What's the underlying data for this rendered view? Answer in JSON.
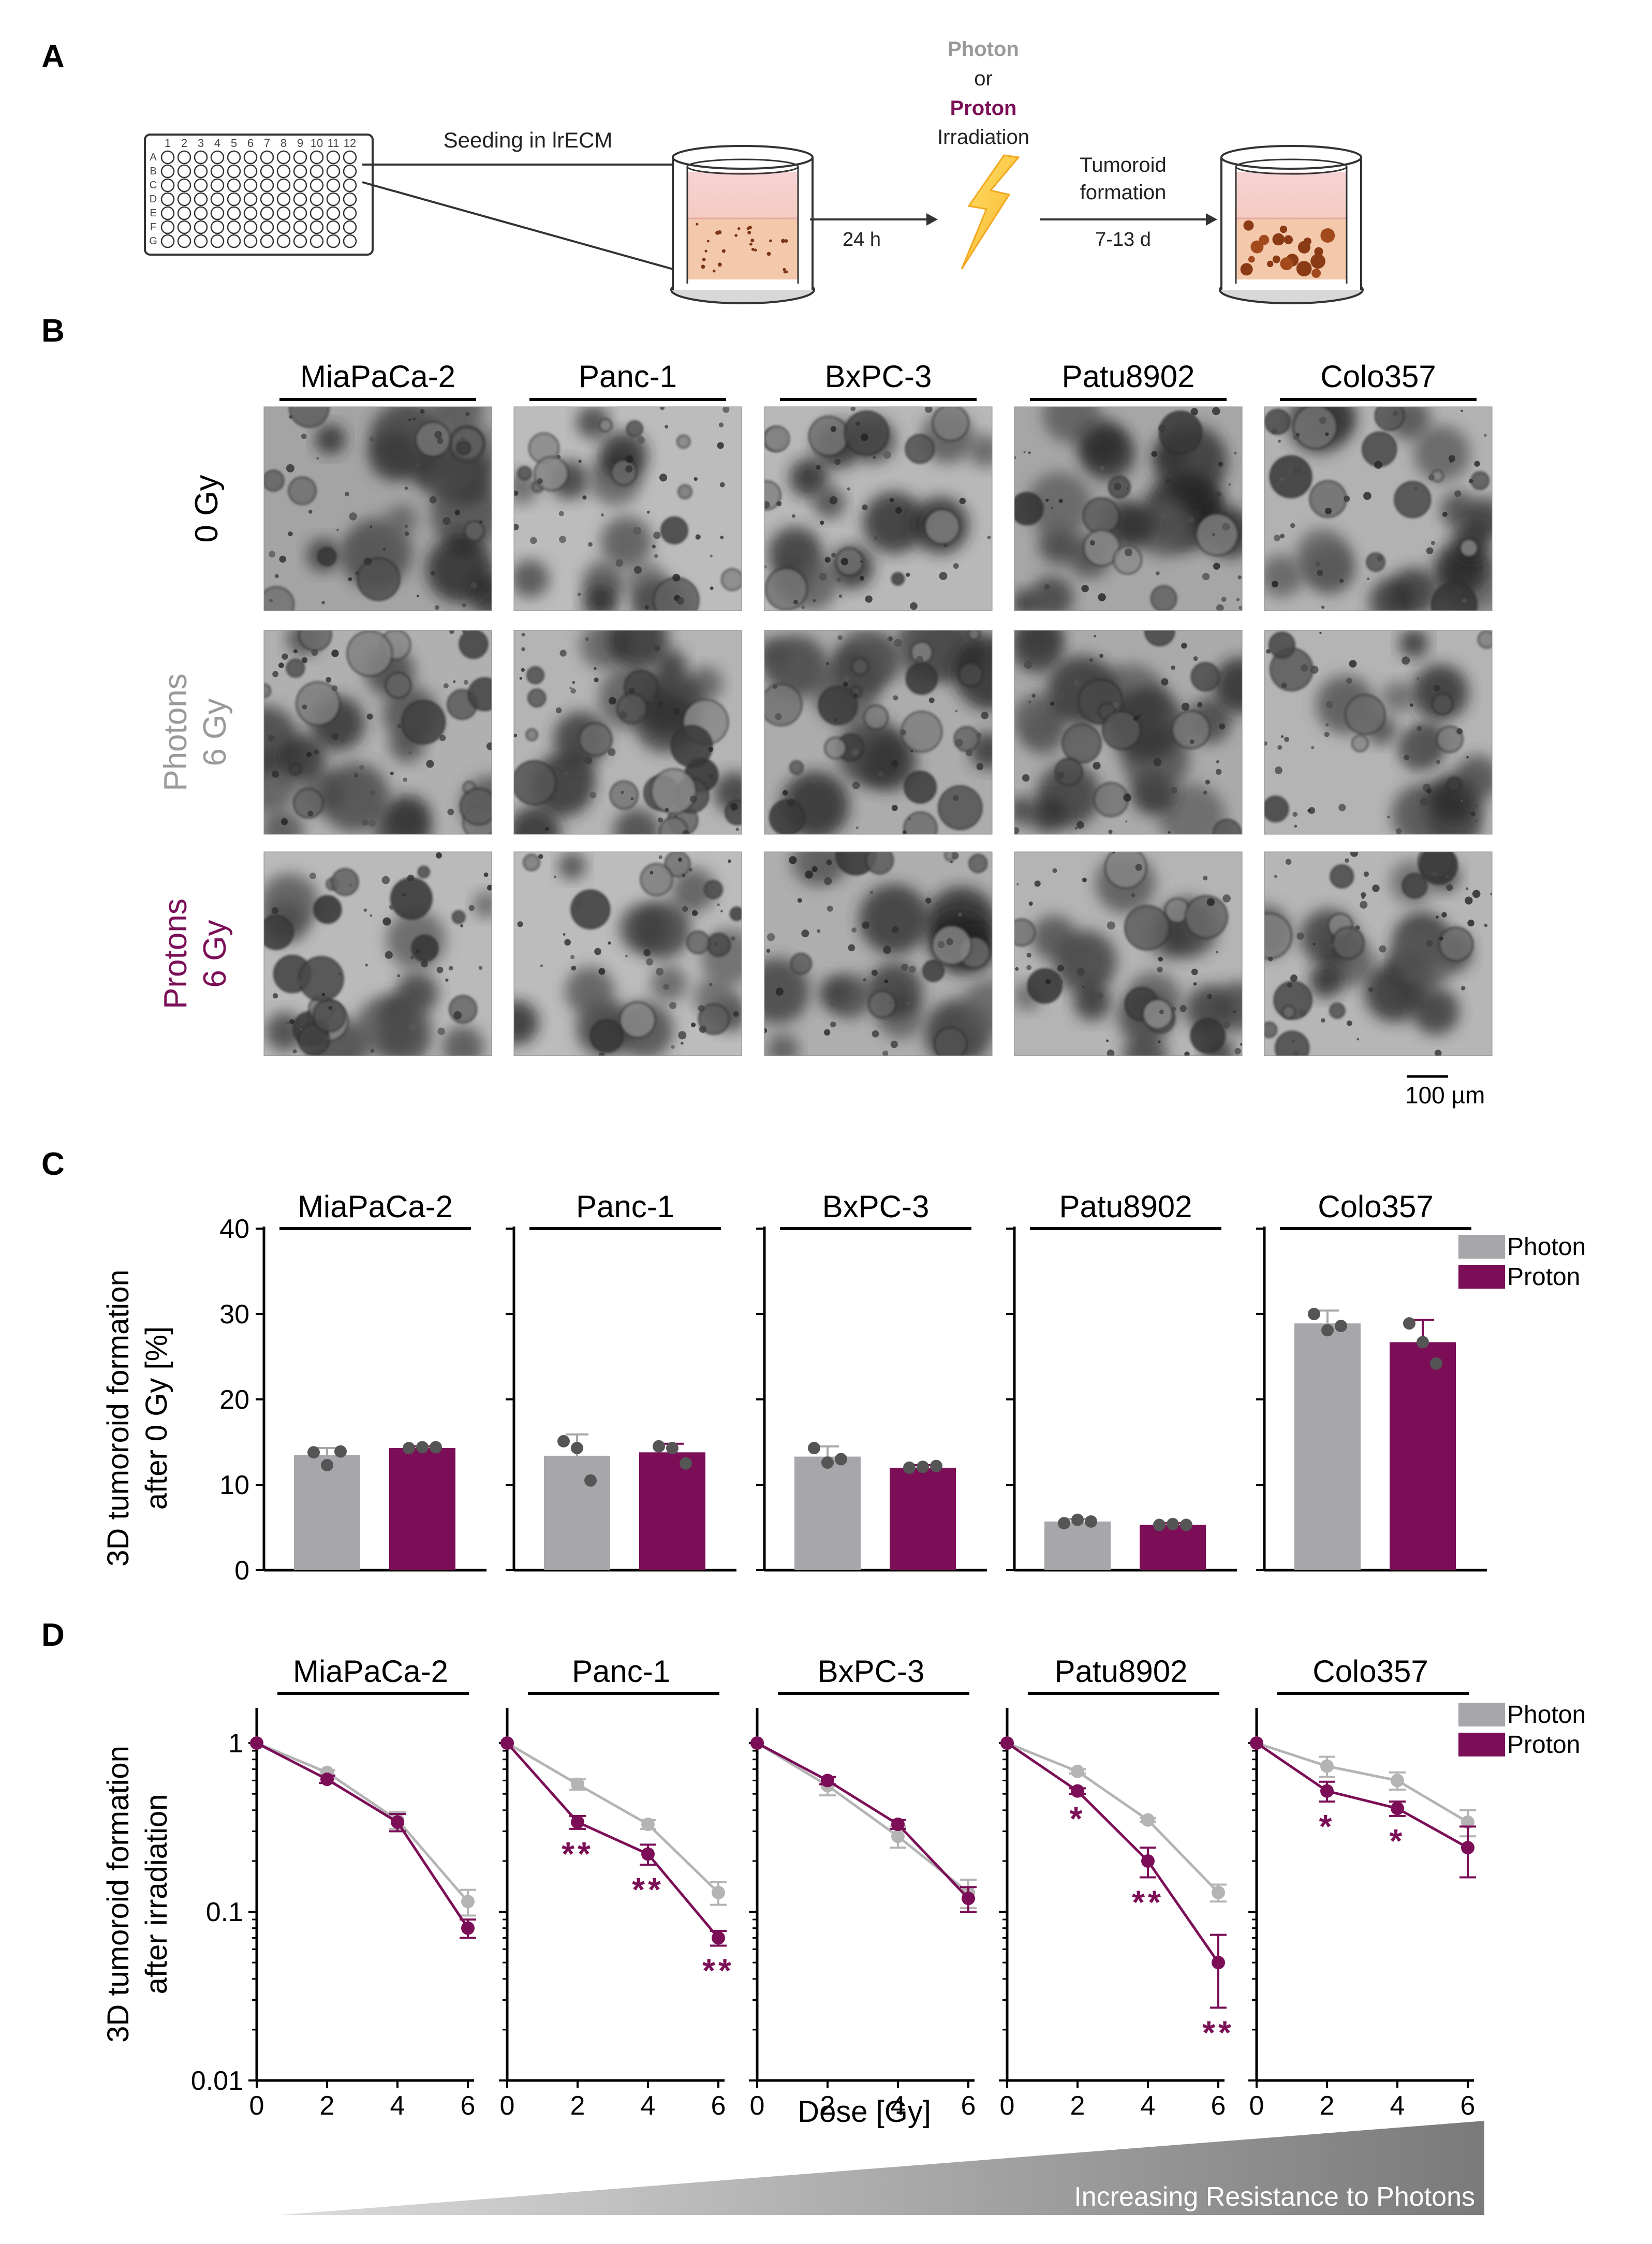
{
  "panel_letters": {
    "a": "A",
    "b": "B",
    "c": "C",
    "d": "D"
  },
  "colors": {
    "photon": "#a7a6aa",
    "proton": "#7b0e57",
    "photon_label": "#9a9a9a",
    "photon_point": "#b4b4b4",
    "proton_point": "#7b0e57",
    "bar_dot": "#555555"
  },
  "panel_a": {
    "plate_cols": [
      "1",
      "2",
      "3",
      "4",
      "5",
      "6",
      "7",
      "8",
      "9",
      "10",
      "11",
      "12"
    ],
    "plate_rows": [
      "A",
      "B",
      "C",
      "D",
      "E",
      "F",
      "G"
    ],
    "seeding_label": "Seeding in lrECM",
    "time_1": "24 h",
    "photon_word": "Photon",
    "or_word": "or",
    "proton_word": "Proton",
    "irradiation_word": "Irradiation",
    "tumoroid_line1": "Tumoroid",
    "tumoroid_line2": "formation",
    "time_2": "7-13 d",
    "lightning_icon": "lightning-bolt-icon"
  },
  "cell_lines": [
    "MiaPaCa-2",
    "Panc-1",
    "BxPC-3",
    "Patu8902",
    "Colo357"
  ],
  "panel_b": {
    "rows": [
      {
        "line1": "0 Gy",
        "line2": "",
        "color": "#000000"
      },
      {
        "line1": "Photons",
        "line2": "6 Gy",
        "color": "#9a9a9a"
      },
      {
        "line1": "Protons",
        "line2": "6 Gy",
        "color": "#7b0e57"
      }
    ],
    "scale_bar": "100 µm"
  },
  "panel_c": {
    "ylabel_line1": "3D tumoroid formation",
    "ylabel_line2": "after 0 Gy [%]",
    "legend": [
      "Photon",
      "Proton"
    ]
  },
  "panel_d": {
    "ylabel_line1": "3D tumoroid formation",
    "ylabel_line2": "after irradiation",
    "xlabel": "Dose [Gy]",
    "legend": [
      "Photon",
      "Proton"
    ],
    "resistance_label": "Increasing Resistance to Photons"
  },
  "chart_data": [
    {
      "type": "bar",
      "panel": "C",
      "ylabel": "3D tumoroid formation after 0 Gy [%]",
      "ylim": [
        0,
        40
      ],
      "yticks": [
        0,
        10,
        20,
        30,
        40
      ],
      "legend_position": "top-right",
      "subplots": [
        {
          "title": "MiaPaCa-2",
          "categories": [
            "Photon",
            "Proton"
          ],
          "series": [
            {
              "name": "Photon",
              "values": [
                13.5
              ],
              "error": [
                0.8
              ],
              "points": [
                13.8,
                12.3,
                13.9
              ]
            },
            {
              "name": "Proton",
              "values": [
                14.3
              ],
              "error": [
                0.2
              ],
              "points": [
                14.3,
                14.4,
                14.4
              ]
            }
          ]
        },
        {
          "title": "Panc-1",
          "categories": [
            "Photon",
            "Proton"
          ],
          "series": [
            {
              "name": "Photon",
              "values": [
                13.4
              ],
              "error": [
                2.5
              ],
              "points": [
                15.1,
                14.3,
                10.5
              ]
            },
            {
              "name": "Proton",
              "values": [
                13.8
              ],
              "error": [
                1.0
              ],
              "points": [
                14.5,
                14.3,
                12.5
              ]
            }
          ]
        },
        {
          "title": "BxPC-3",
          "categories": [
            "Photon",
            "Proton"
          ],
          "series": [
            {
              "name": "Photon",
              "values": [
                13.3
              ],
              "error": [
                1.2
              ],
              "points": [
                14.3,
                12.6,
                13.0
              ]
            },
            {
              "name": "Proton",
              "values": [
                12.0
              ],
              "error": [
                0.3
              ],
              "points": [
                12.0,
                12.1,
                12.2
              ]
            }
          ]
        },
        {
          "title": "Patu8902",
          "categories": [
            "Photon",
            "Proton"
          ],
          "series": [
            {
              "name": "Photon",
              "values": [
                5.7
              ],
              "error": [
                0.3
              ],
              "points": [
                5.5,
                5.9,
                5.7
              ]
            },
            {
              "name": "Proton",
              "values": [
                5.3
              ],
              "error": [
                0.2
              ],
              "points": [
                5.3,
                5.4,
                5.3
              ]
            }
          ]
        },
        {
          "title": "Colo357",
          "categories": [
            "Photon",
            "Proton"
          ],
          "series": [
            {
              "name": "Photon",
              "values": [
                28.9
              ],
              "error": [
                1.5
              ],
              "points": [
                30.0,
                28.1,
                28.6
              ]
            },
            {
              "name": "Proton",
              "values": [
                26.7
              ],
              "error": [
                2.6
              ],
              "points": [
                28.9,
                26.7,
                24.2
              ]
            }
          ]
        }
      ]
    },
    {
      "type": "line",
      "panel": "D",
      "ylabel": "3D tumoroid formation after irradiation",
      "xlabel": "Dose [Gy]",
      "x": [
        0,
        2,
        4,
        6
      ],
      "xticks": [
        0,
        2,
        4,
        6
      ],
      "yscale": "log",
      "ylim": [
        0.01,
        2
      ],
      "yticks": [
        0.01,
        0.1,
        1
      ],
      "ytick_labels": [
        "0.01",
        "0.1",
        "1"
      ],
      "legend_position": "top-right",
      "subplots": [
        {
          "title": "MiaPaCa-2",
          "series": [
            {
              "name": "Photon",
              "values": [
                1,
                0.67,
                0.35,
                0.115
              ],
              "error": [
                0,
                0.02,
                0.04,
                0.02
              ]
            },
            {
              "name": "Proton",
              "values": [
                1,
                0.61,
                0.34,
                0.08
              ],
              "error": [
                0,
                0.03,
                0.04,
                0.01
              ]
            }
          ],
          "significance": [
            "",
            "",
            "",
            ""
          ]
        },
        {
          "title": "Panc-1",
          "series": [
            {
              "name": "Photon",
              "values": [
                1,
                0.57,
                0.33,
                0.13
              ],
              "error": [
                0,
                0.04,
                0.02,
                0.02
              ]
            },
            {
              "name": "Proton",
              "values": [
                1,
                0.34,
                0.22,
                0.07
              ],
              "error": [
                0,
                0.03,
                0.03,
                0.007
              ]
            }
          ],
          "significance": [
            "",
            "**",
            "**",
            "**"
          ]
        },
        {
          "title": "BxPC-3",
          "series": [
            {
              "name": "Photon",
              "values": [
                1,
                0.56,
                0.28,
                0.13
              ],
              "error": [
                0,
                0.07,
                0.04,
                0.025
              ]
            },
            {
              "name": "Proton",
              "values": [
                1,
                0.6,
                0.33,
                0.12
              ],
              "error": [
                0,
                0.03,
                0.02,
                0.02
              ]
            }
          ],
          "significance": [
            "",
            "",
            "",
            ""
          ]
        },
        {
          "title": "Patu8902",
          "series": [
            {
              "name": "Photon",
              "values": [
                1,
                0.68,
                0.35,
                0.13
              ],
              "error": [
                0,
                0.02,
                0.01,
                0.015
              ]
            },
            {
              "name": "Proton",
              "values": [
                1,
                0.52,
                0.2,
                0.05
              ],
              "error": [
                0,
                0.02,
                0.04,
                0.023
              ]
            }
          ],
          "significance": [
            "",
            "*",
            "**",
            "**"
          ]
        },
        {
          "title": "Colo357",
          "series": [
            {
              "name": "Photon",
              "values": [
                1,
                0.73,
                0.6,
                0.34
              ],
              "error": [
                0,
                0.1,
                0.07,
                0.06
              ]
            },
            {
              "name": "Proton",
              "values": [
                1,
                0.52,
                0.41,
                0.24
              ],
              "error": [
                0,
                0.07,
                0.04,
                0.08
              ]
            }
          ],
          "significance": [
            "",
            "*",
            "*",
            ""
          ]
        }
      ]
    }
  ]
}
